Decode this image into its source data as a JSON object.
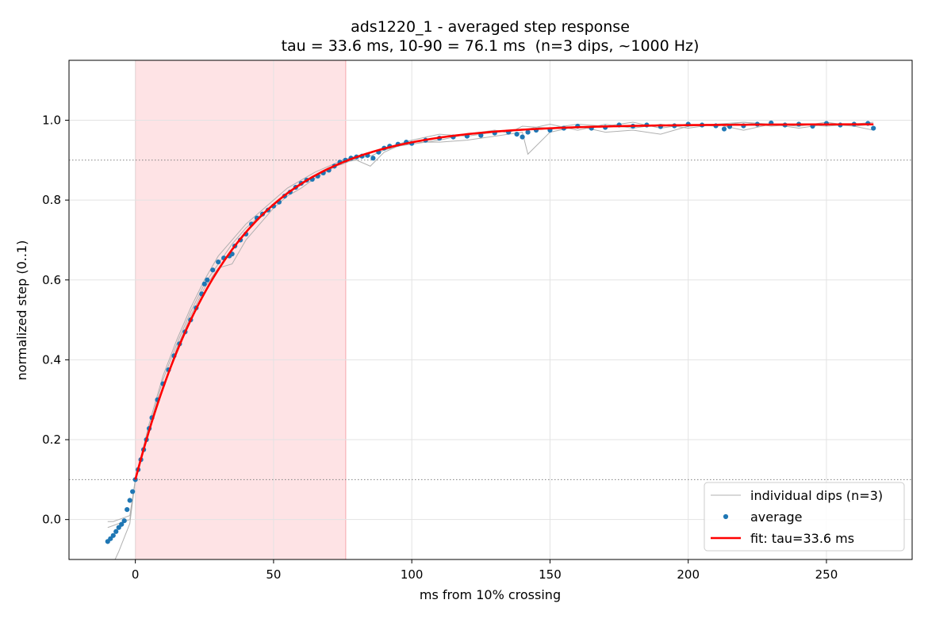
{
  "chart_data": {
    "type": "line",
    "title": "ads1220_1 - averaged step response",
    "subtitle": "tau = 33.6 ms, 10-90 = 76.1 ms  (n=3 dips, ~1000 Hz)",
    "xlabel": "ms from 10% crossing",
    "ylabel": "normalized step (0..1)",
    "xlim": [
      -24,
      281
    ],
    "ylim": [
      -0.1,
      1.15
    ],
    "xticks": [
      0,
      50,
      100,
      150,
      200,
      250
    ],
    "yticks": [
      0.0,
      0.2,
      0.4,
      0.6,
      0.8,
      1.0
    ],
    "xtick_labels": [
      "0",
      "50",
      "100",
      "150",
      "200",
      "250"
    ],
    "ytick_labels": [
      "0.0",
      "0.2",
      "0.4",
      "0.6",
      "0.8",
      "1.0"
    ],
    "grid": true,
    "legend_position": "lower-right",
    "shaded_span": {
      "x0": 0,
      "x1": 76.1,
      "color": "#fdd0d4"
    },
    "hlines": [
      0.1,
      0.9
    ],
    "fit": {
      "tau": 33.6,
      "t_start": 0,
      "t_end": 267,
      "y0": 0.1,
      "y_inf": 0.99
    },
    "average": {
      "x": [
        -10,
        -9,
        -8,
        -7,
        -6,
        -5,
        -4,
        -3,
        -2,
        -1,
        0,
        1,
        2,
        3,
        4,
        5,
        6,
        8,
        10,
        12,
        14,
        16,
        18,
        20,
        22,
        24,
        25,
        26,
        28,
        30,
        32,
        34,
        35,
        36,
        38,
        40,
        42,
        44,
        46,
        48,
        50,
        52,
        54,
        56,
        58,
        60,
        62,
        64,
        66,
        68,
        70,
        72,
        74,
        76,
        78,
        80,
        82,
        84,
        86,
        88,
        90,
        92,
        95,
        98,
        100,
        105,
        110,
        115,
        120,
        125,
        130,
        135,
        138,
        140,
        142,
        145,
        150,
        155,
        160,
        165,
        170,
        175,
        180,
        185,
        190,
        195,
        200,
        205,
        210,
        213,
        215,
        220,
        225,
        230,
        235,
        240,
        245,
        250,
        255,
        260,
        265,
        267
      ],
      "y": [
        -0.055,
        -0.048,
        -0.04,
        -0.03,
        -0.02,
        -0.012,
        -0.003,
        0.025,
        0.048,
        0.07,
        0.1,
        0.125,
        0.15,
        0.175,
        0.2,
        0.228,
        0.255,
        0.3,
        0.34,
        0.375,
        0.41,
        0.44,
        0.47,
        0.5,
        0.53,
        0.565,
        0.59,
        0.6,
        0.625,
        0.645,
        0.655,
        0.66,
        0.665,
        0.685,
        0.7,
        0.715,
        0.74,
        0.755,
        0.765,
        0.775,
        0.785,
        0.795,
        0.81,
        0.82,
        0.832,
        0.842,
        0.85,
        0.852,
        0.86,
        0.868,
        0.875,
        0.885,
        0.895,
        0.9,
        0.905,
        0.908,
        0.91,
        0.912,
        0.905,
        0.92,
        0.93,
        0.935,
        0.94,
        0.945,
        0.942,
        0.95,
        0.955,
        0.958,
        0.96,
        0.962,
        0.968,
        0.97,
        0.965,
        0.958,
        0.97,
        0.975,
        0.975,
        0.98,
        0.985,
        0.98,
        0.982,
        0.988,
        0.985,
        0.988,
        0.984,
        0.986,
        0.99,
        0.988,
        0.986,
        0.978,
        0.984,
        0.986,
        0.99,
        0.993,
        0.988,
        0.99,
        0.985,
        0.992,
        0.988,
        0.99,
        0.992,
        0.98
      ]
    },
    "dips": [
      {
        "x": [
          -10,
          -8,
          -6,
          -4,
          -2,
          0,
          5,
          10,
          15,
          20,
          25,
          30,
          35,
          40,
          45,
          50,
          55,
          60,
          65,
          70,
          75,
          80,
          85,
          90,
          95,
          100,
          110,
          120,
          130,
          135,
          140,
          150,
          160,
          170,
          180,
          190,
          200,
          210,
          220,
          230,
          240,
          250,
          260,
          267
        ],
        "y": [
          -0.005,
          -0.005,
          0.0,
          0.005,
          0.01,
          0.1,
          0.23,
          0.35,
          0.44,
          0.52,
          0.59,
          0.64,
          0.69,
          0.73,
          0.76,
          0.79,
          0.82,
          0.84,
          0.86,
          0.88,
          0.89,
          0.905,
          0.91,
          0.925,
          0.935,
          0.94,
          0.95,
          0.965,
          0.975,
          0.968,
          0.985,
          0.98,
          0.99,
          0.985,
          0.995,
          0.98,
          0.99,
          0.985,
          0.995,
          0.99,
          0.985,
          0.995,
          0.985,
          0.99
        ]
      },
      {
        "x": [
          -10,
          -8,
          -6,
          -4,
          -2,
          0,
          5,
          10,
          15,
          20,
          25,
          30,
          35,
          40,
          45,
          50,
          55,
          60,
          65,
          70,
          75,
          80,
          85,
          90,
          95,
          100,
          110,
          120,
          130,
          140,
          142,
          150,
          160,
          170,
          180,
          190,
          200,
          210,
          220,
          230,
          240,
          250,
          260,
          267
        ],
        "y": [
          -0.14,
          -0.11,
          -0.08,
          -0.045,
          -0.01,
          0.1,
          0.22,
          0.33,
          0.43,
          0.51,
          0.58,
          0.63,
          0.64,
          0.7,
          0.74,
          0.78,
          0.81,
          0.83,
          0.855,
          0.875,
          0.895,
          0.9,
          0.885,
          0.92,
          0.935,
          0.945,
          0.945,
          0.95,
          0.96,
          0.97,
          0.915,
          0.97,
          0.985,
          0.97,
          0.975,
          0.965,
          0.985,
          0.99,
          0.975,
          0.99,
          0.98,
          0.99,
          0.985,
          0.975
        ]
      },
      {
        "x": [
          -10,
          -8,
          -6,
          -4,
          -2,
          0,
          5,
          10,
          15,
          20,
          25,
          30,
          35,
          40,
          45,
          50,
          55,
          60,
          65,
          70,
          75,
          80,
          85,
          90,
          95,
          100,
          110,
          120,
          130,
          140,
          150,
          160,
          170,
          180,
          190,
          200,
          210,
          220,
          230,
          240,
          250,
          260,
          267
        ],
        "y": [
          -0.02,
          -0.015,
          -0.01,
          -0.005,
          0.0,
          0.1,
          0.24,
          0.36,
          0.45,
          0.53,
          0.6,
          0.66,
          0.7,
          0.74,
          0.77,
          0.8,
          0.83,
          0.85,
          0.87,
          0.885,
          0.9,
          0.91,
          0.92,
          0.93,
          0.94,
          0.95,
          0.965,
          0.96,
          0.97,
          0.975,
          0.99,
          0.975,
          0.99,
          0.98,
          0.99,
          0.98,
          0.99,
          0.995,
          0.985,
          0.99,
          0.985,
          0.99,
          0.995
        ]
      }
    ],
    "legend": [
      {
        "label": "individual dips (n=3)",
        "kind": "line",
        "color": "#b0b0b0"
      },
      {
        "label": "average",
        "kind": "dot",
        "color": "#1f77b4"
      },
      {
        "label": "fit: tau=33.6 ms",
        "kind": "line",
        "color": "#ff0000"
      }
    ],
    "colors": {
      "dips": "#b0b0b0",
      "average": "#1f77b4",
      "fit": "#ff0000",
      "span": "#fdd0d4",
      "grid": "#e3e3e3",
      "hline": "#808080"
    }
  }
}
